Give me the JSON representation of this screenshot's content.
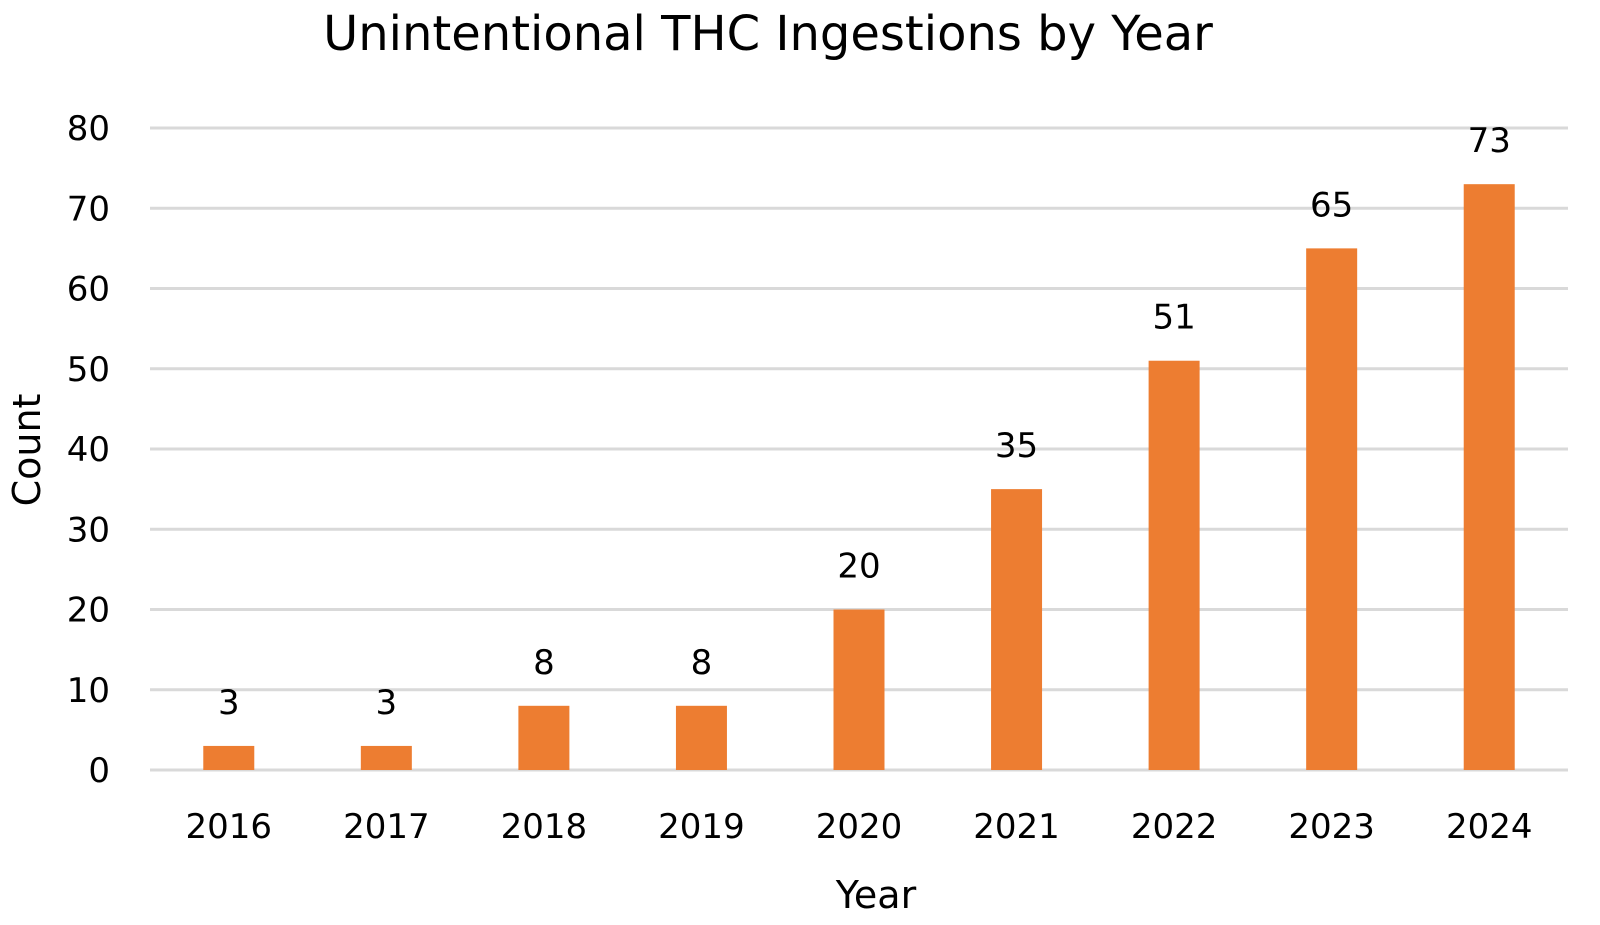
{
  "chart_data": {
    "type": "bar",
    "title": "Unintentional THC Ingestions by Year",
    "xlabel": "Year",
    "ylabel": "Count",
    "categories": [
      "2016",
      "2017",
      "2018",
      "2019",
      "2020",
      "2021",
      "2022",
      "2023",
      "2024"
    ],
    "values": [
      3,
      3,
      8,
      8,
      20,
      35,
      51,
      65,
      73
    ],
    "ylim": [
      0,
      80
    ],
    "yticks": [
      0,
      10,
      20,
      30,
      40,
      50,
      60,
      70,
      80
    ],
    "grid": true,
    "legend": "none",
    "data_labels": true,
    "bar_color": "#ED7D31",
    "grid_color": "#D9D9D9"
  }
}
